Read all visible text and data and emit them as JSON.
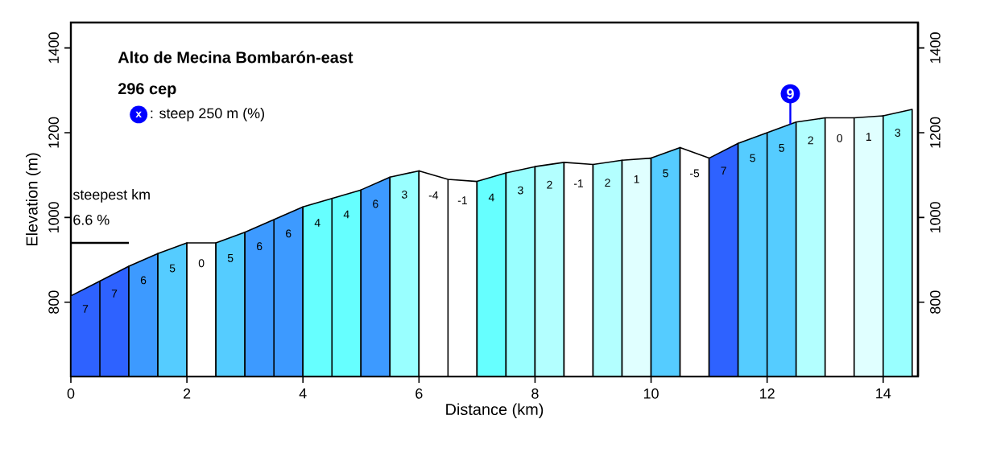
{
  "chart_data": {
    "type": "area",
    "title": "Alto de Mecina Bombarón-east",
    "subtitle": "296 cep",
    "xlabel": "Distance (km)",
    "ylabel": "Elevation (m)",
    "xlim": [
      0,
      14.6
    ],
    "xticks": [
      0,
      2,
      4,
      6,
      8,
      10,
      12,
      14
    ],
    "ylim": [
      625,
      1460
    ],
    "yticks": [
      800,
      1000,
      1200,
      1400
    ],
    "y2lim": [
      625,
      1460
    ],
    "y2ticks": [
      800,
      1000,
      1200,
      1400
    ],
    "series": [
      {
        "color": "#2e62ff",
        "x": [
          0,
          0.5,
          1
        ],
        "values": [
          815,
          850,
          885
        ]
      },
      {
        "color": "#3d9aff",
        "x": [
          1,
          1.5
        ],
        "values": [
          885,
          915
        ]
      },
      {
        "color": "#55ccff",
        "x": [
          1.5,
          2
        ],
        "values": [
          915,
          940
        ]
      },
      {
        "color": "#ffffff",
        "x": [
          2,
          2.5
        ],
        "values": [
          940,
          940
        ]
      },
      {
        "color": "#55ccff",
        "x": [
          2.5,
          3
        ],
        "values": [
          940,
          965
        ]
      },
      {
        "color": "#3d9aff",
        "x": [
          3,
          3.5,
          4
        ],
        "values": [
          965,
          995,
          1025
        ]
      },
      {
        "color": "#66ffff",
        "x": [
          4,
          4.5,
          5
        ],
        "values": [
          1025,
          1045,
          1065
        ]
      },
      {
        "color": "#3d9aff",
        "x": [
          5,
          5.5
        ],
        "values": [
          1065,
          1095
        ]
      },
      {
        "color": "#99ffff",
        "x": [
          5.5,
          6
        ],
        "values": [
          1095,
          1110
        ]
      },
      {
        "color": "#ffffff",
        "x": [
          6,
          6.5,
          7
        ],
        "values": [
          1110,
          1090,
          1085
        ]
      },
      {
        "color": "#66ffff",
        "x": [
          7,
          7.5
        ],
        "values": [
          1085,
          1105
        ]
      },
      {
        "color": "#99ffff",
        "x": [
          7.5,
          8
        ],
        "values": [
          1105,
          1120
        ]
      },
      {
        "color": "#b3ffff",
        "x": [
          8,
          8.5
        ],
        "values": [
          1120,
          1130
        ]
      },
      {
        "color": "#ffffff",
        "x": [
          8.5,
          9
        ],
        "values": [
          1130,
          1125
        ]
      },
      {
        "color": "#b3ffff",
        "x": [
          9,
          9.5
        ],
        "values": [
          1125,
          1135
        ]
      },
      {
        "color": "#e0ffff",
        "x": [
          9.5,
          10
        ],
        "values": [
          1135,
          1140
        ]
      },
      {
        "color": "#55ccff",
        "x": [
          10,
          10.5
        ],
        "values": [
          1140,
          1165
        ]
      },
      {
        "color": "#ffffff",
        "x": [
          10.5,
          11
        ],
        "values": [
          1165,
          1140
        ]
      },
      {
        "color": "#2e62ff",
        "x": [
          11,
          11.5
        ],
        "values": [
          1140,
          1175
        ]
      },
      {
        "color": "#55ccff",
        "x": [
          11.5,
          12,
          12.5
        ],
        "values": [
          1175,
          1200,
          1225
        ]
      },
      {
        "color": "#b3ffff",
        "x": [
          12.5,
          13
        ],
        "values": [
          1225,
          1235
        ]
      },
      {
        "color": "#ffffff",
        "x": [
          13,
          13.5
        ],
        "values": [
          1235,
          1235
        ]
      },
      {
        "color": "#e0ffff",
        "x": [
          13.5,
          14
        ],
        "values": [
          1235,
          1240
        ]
      },
      {
        "color": "#99ffff",
        "x": [
          14,
          14.5
        ],
        "values": [
          1240,
          1255
        ]
      },
      {
        "type": "line",
        "color": "#000000",
        "x": [
          0,
          1
        ],
        "values": [
          940,
          940
        ]
      }
    ],
    "annotations": [
      "x",
      ": steep 250 m (%)",
      {
        "text": "9",
        "x": 12.4,
        "y": 1220
      },
      {
        "text": "steepest km",
        "x": 0,
        "y": 940
      },
      {
        "text": "6.6 %",
        "x": 0,
        "y": 940
      },
      {
        "text": "7",
        "x": 0.25,
        "y": 832
      },
      {
        "text": "7",
        "x": 0.75,
        "y": 868
      },
      {
        "text": "6",
        "x": 1.25,
        "y": 900
      },
      {
        "text": "5",
        "x": 1.75,
        "y": 928
      },
      {
        "text": "0",
        "x": 2.25,
        "y": 940
      },
      {
        "text": "5",
        "x": 2.75,
        "y": 952
      },
      {
        "text": "6",
        "x": 3.25,
        "y": 980
      },
      {
        "text": "6",
        "x": 3.75,
        "y": 1010
      },
      {
        "text": "4",
        "x": 4.25,
        "y": 1035
      },
      {
        "text": "4",
        "x": 4.75,
        "y": 1055
      },
      {
        "text": "6",
        "x": 5.25,
        "y": 1080
      },
      {
        "text": "3",
        "x": 5.75,
        "y": 1102
      },
      {
        "text": "-4",
        "x": 6.25,
        "y": 1100
      },
      {
        "text": "-1",
        "x": 6.75,
        "y": 1088
      },
      {
        "text": "4",
        "x": 7.25,
        "y": 1095
      },
      {
        "text": "3",
        "x": 7.75,
        "y": 1112
      },
      {
        "text": "2",
        "x": 8.25,
        "y": 1125
      },
      {
        "text": "-1",
        "x": 8.75,
        "y": 1128
      },
      {
        "text": "2",
        "x": 9.25,
        "y": 1130
      },
      {
        "text": "1",
        "x": 9.75,
        "y": 1138
      },
      {
        "text": "5",
        "x": 10.25,
        "y": 1152
      },
      {
        "text": "-5",
        "x": 10.75,
        "y": 1152
      },
      {
        "text": "7",
        "x": 11.25,
        "y": 1158
      },
      {
        "text": "5",
        "x": 11.75,
        "y": 1188
      },
      {
        "text": "5",
        "x": 12.25,
        "y": 1212
      },
      {
        "text": "2",
        "x": 12.75,
        "y": 1230
      },
      {
        "text": "0",
        "x": 13.25,
        "y": 1235
      },
      {
        "text": "1",
        "x": 13.75,
        "y": 1238
      },
      {
        "text": "3",
        "x": 14.25,
        "y": 1248
      }
    ]
  }
}
